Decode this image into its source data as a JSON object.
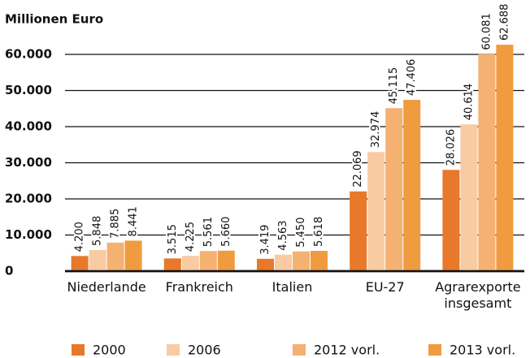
{
  "chart_data": {
    "type": "bar",
    "y_label": "Millionen Euro",
    "categories": [
      "Niederlande",
      "Frankreich",
      "Italien",
      "EU-27",
      "Agrarexporte insgesamt"
    ],
    "series": [
      {
        "name": "2000",
        "color": "#e8782a",
        "values": [
          4200,
          3515,
          3419,
          22069,
          28026
        ],
        "value_labels": [
          "4.200",
          "3.515",
          "3.419",
          "22.069",
          "28.026"
        ]
      },
      {
        "name": "2006",
        "color": "#f9cba2",
        "values": [
          5848,
          4225,
          4563,
          32974,
          40614
        ],
        "value_labels": [
          "5.848",
          "4.225",
          "4.563",
          "32.974",
          "40.614"
        ]
      },
      {
        "name": "2012 vorl.",
        "color": "#f4b171",
        "values": [
          7885,
          5561,
          5450,
          45115,
          60081
        ],
        "value_labels": [
          "7.885",
          "5.561",
          "5.450",
          "45.115",
          "60.081"
        ]
      },
      {
        "name": "2013 vorl.",
        "color": "#f09b40",
        "values": [
          8441,
          5660,
          5618,
          47406,
          62688
        ],
        "value_labels": [
          "8.441",
          "5.660",
          "5.618",
          "47.406",
          "62.688"
        ]
      }
    ],
    "ylim": [
      0,
      60000
    ],
    "yticks": [
      0,
      {
        "value": 10000,
        "label": "10.000"
      },
      {
        "value": 20000,
        "label": "20.000"
      },
      {
        "value": 30000,
        "label": "30.000"
      },
      {
        "value": 40000,
        "label": "40.000"
      },
      {
        "value": 50000,
        "label": "50.000"
      },
      {
        "value": 60000,
        "label": "60.000"
      }
    ],
    "grid": true
  }
}
